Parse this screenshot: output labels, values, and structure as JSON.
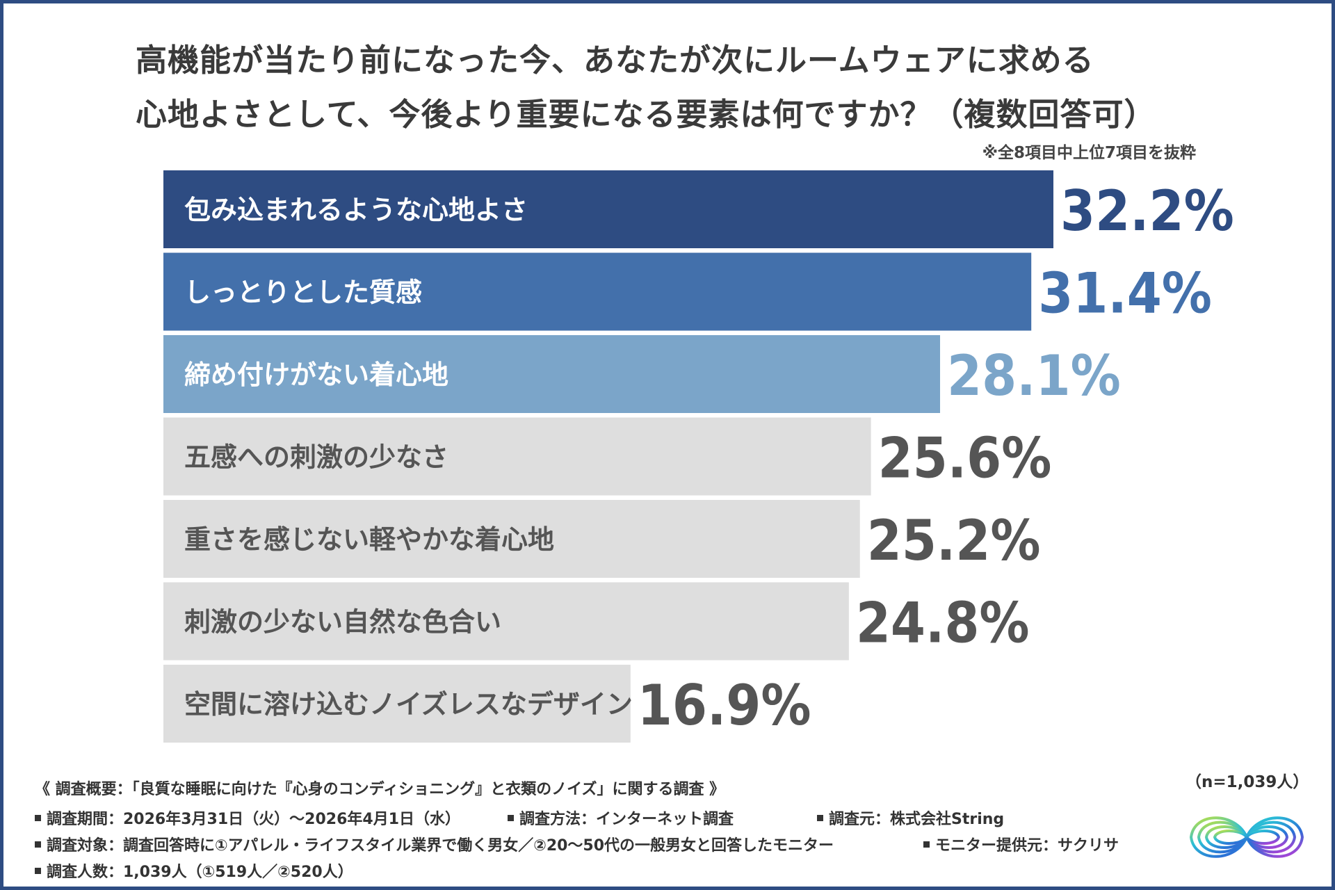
{
  "title": {
    "line1": "高機能が当たり前になった今、あなたが次にルームウェアに求める",
    "line2": "心地よさとして、今後より重要になる要素は何ですか？（複数回答可）"
  },
  "note": "※全8項目中上位7項目を抜粋",
  "chart_data": {
    "type": "bar",
    "orientation": "horizontal",
    "categories": [
      "包み込まれるような心地よさ",
      "しっとりとした質感",
      "締め付けがない着心地",
      "五感への刺激の少なさ",
      "重さを感じない軽やかな着心地",
      "刺激の少ない自然な色合い",
      "空間に溶け込むノイズレスなデザイン"
    ],
    "values": [
      32.2,
      31.4,
      28.1,
      25.6,
      25.2,
      24.8,
      16.9
    ],
    "value_labels": [
      "32.2%",
      "31.4%",
      "28.1%",
      "25.6%",
      "25.2%",
      "24.8%",
      "16.9%"
    ],
    "unit": "%",
    "bar_colors": [
      "#2e4c82",
      "#4370ab",
      "#7ba5c9",
      "#dedede",
      "#dedede",
      "#dedede",
      "#dedede"
    ],
    "label_colors": [
      "#ffffff",
      "#ffffff",
      "#ffffff",
      "#555555",
      "#555555",
      "#555555",
      "#555555"
    ],
    "value_colors": [
      "#2e4c82",
      "#4370ab",
      "#7ba5c9",
      "#555555",
      "#555555",
      "#555555",
      "#555555"
    ],
    "xlim": [
      0,
      32.2
    ],
    "grid": false
  },
  "footer": {
    "overview": "《 調査概要：「良質な睡眠に向けた『心身のコンディショニング』と衣類のノイズ」に関する調査 》",
    "period": "調査期間：2026年3月31日（火）〜2026年4月1日（水）",
    "method": "調査方法：インターネット調査",
    "organizer": "調査元：株式会社String",
    "target": "調査対象：調査回答時に①アパレル・ライフスタイル業界で働く男女／②20〜50代の一般男女と回答したモニター",
    "provider": "モニター提供元：サクリサ",
    "count": "調査人数：1,039人（①519人／②520人）"
  },
  "sample_size": "（n=1,039人）",
  "colors": {
    "frame": "#2e4c82",
    "dark_blue": "#2e4c82",
    "mid_blue": "#4370ab",
    "light_blue": "#7ba5c9",
    "gray_bar": "#dedede"
  },
  "logo_icon": "infinity-loop-logo-icon"
}
